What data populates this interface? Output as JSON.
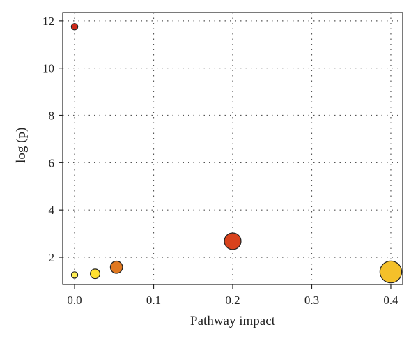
{
  "chart_data": {
    "type": "scatter",
    "title": "",
    "xlabel": "Pathway impact",
    "ylabel": "–log (p)",
    "xlim": [
      -0.015,
      0.415
    ],
    "ylim": [
      0.85,
      12.35
    ],
    "xticks": [
      0.0,
      0.1,
      0.2,
      0.3,
      0.4
    ],
    "xtick_labels": [
      "0.0",
      "0.1",
      "0.2",
      "0.3",
      "0.4"
    ],
    "yticks": [
      2,
      4,
      6,
      8,
      10,
      12
    ],
    "ytick_labels": [
      "2",
      "4",
      "6",
      "8",
      "10",
      "12"
    ],
    "grid": true,
    "legend": "none",
    "points": [
      {
        "x": 0.0,
        "y": 11.75,
        "size": 1.0,
        "color": "#cc2a1a"
      },
      {
        "x": 0.0,
        "y": 1.25,
        "size": 1.0,
        "color": "#ffee55"
      },
      {
        "x": 0.026,
        "y": 1.3,
        "size": 1.5,
        "color": "#ffe030"
      },
      {
        "x": 0.053,
        "y": 1.58,
        "size": 1.9,
        "color": "#e07820"
      },
      {
        "x": 0.2,
        "y": 2.68,
        "size": 2.6,
        "color": "#d8421c"
      },
      {
        "x": 0.4,
        "y": 1.38,
        "size": 3.4,
        "color": "#f4c02a"
      }
    ]
  }
}
